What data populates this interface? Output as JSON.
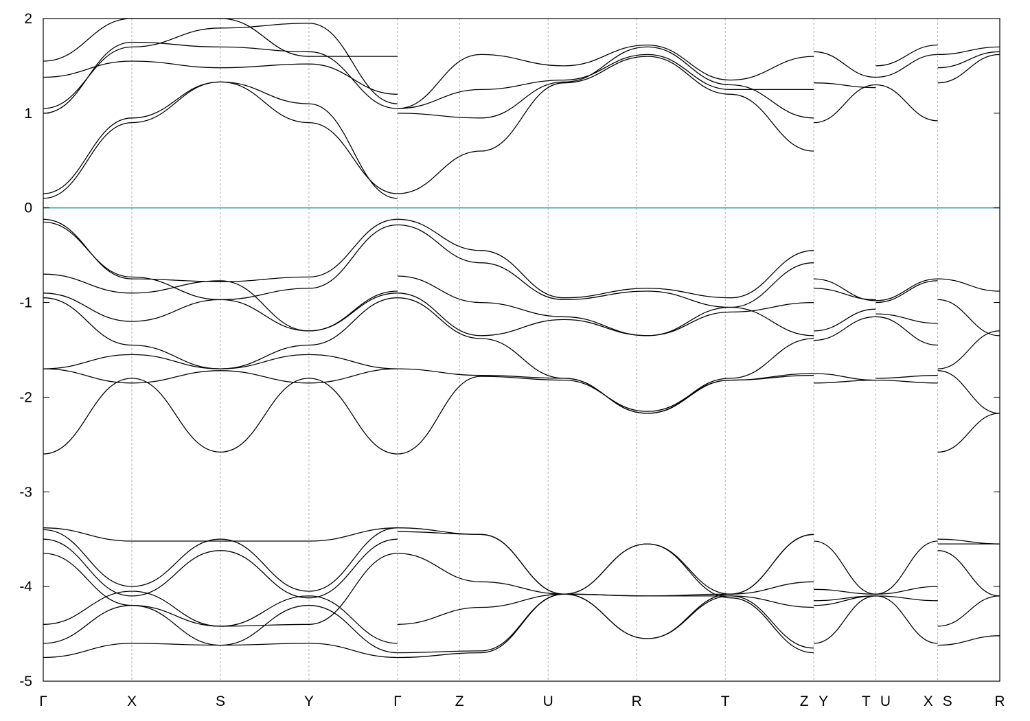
{
  "chart_data": {
    "type": "line",
    "title": "",
    "xlabel": "",
    "ylabel": "",
    "ylim": [
      -5,
      2
    ],
    "yticks": [
      2,
      1,
      0,
      -1,
      -2,
      -3,
      -4,
      -5
    ],
    "grid": "vertical dashed lines at high-symmetry points",
    "fermi_level": {
      "y": 0,
      "color": "#3aa6b9"
    },
    "kpoints": [
      {
        "label": "Γ",
        "x": 0.0
      },
      {
        "label": "X",
        "x": 0.5
      },
      {
        "label": "S",
        "x": 1.0
      },
      {
        "label": "Y",
        "x": 1.5
      },
      {
        "label": "Γ",
        "x": 2.0
      },
      {
        "label": "Z",
        "x": 2.35
      },
      {
        "label": "U",
        "x": 2.85
      },
      {
        "label": "R",
        "x": 3.35
      },
      {
        "label": "T",
        "x": 3.85
      },
      {
        "label": "Z",
        "x": 4.35
      },
      {
        "label": "Y",
        "x": 4.35
      },
      {
        "label": "T",
        "x": 4.7
      },
      {
        "label": "U",
        "x": 4.7
      },
      {
        "label": "X",
        "x": 5.05
      },
      {
        "label": "S",
        "x": 5.05
      },
      {
        "label": "R",
        "x": 5.4
      }
    ],
    "segments": [
      {
        "x0": 0.0,
        "x1": 2.0,
        "bands": [
          [
            1.05,
            1.7,
            1.9,
            1.95,
            1.1
          ],
          [
            1.0,
            1.75,
            1.7,
            1.65,
            1.05
          ],
          [
            0.15,
            0.95,
            1.33,
            0.9,
            0.15
          ],
          [
            0.1,
            0.9,
            1.33,
            1.1,
            0.1
          ],
          [
            1.38,
            1.55,
            1.48,
            1.52,
            1.2
          ],
          [
            1.55,
            2.0,
            2.0,
            1.6,
            1.6
          ],
          [
            -0.12,
            -0.75,
            -0.78,
            -0.73,
            -0.12
          ],
          [
            -0.15,
            -0.73,
            -0.97,
            -0.85,
            -0.18
          ],
          [
            -0.7,
            -0.9,
            -0.77,
            -1.3,
            -0.88
          ],
          [
            -0.9,
            -1.2,
            -0.97,
            -1.3,
            -0.9
          ],
          [
            -0.95,
            -1.45,
            -1.7,
            -1.45,
            -0.95
          ],
          [
            -1.7,
            -1.55,
            -1.7,
            -1.55,
            -1.7
          ],
          [
            -1.7,
            -1.85,
            -1.72,
            -1.85,
            -1.7
          ],
          [
            -2.6,
            -1.8,
            -2.58,
            -1.8,
            -2.6
          ],
          [
            -3.38,
            -3.52,
            -3.52,
            -3.52,
            -3.38
          ],
          [
            -3.4,
            -4.0,
            -3.5,
            -4.05,
            -3.38
          ],
          [
            -3.5,
            -4.1,
            -3.62,
            -4.12,
            -3.5
          ],
          [
            -3.65,
            -4.2,
            -4.42,
            -4.4,
            -3.65
          ],
          [
            -4.4,
            -4.05,
            -4.42,
            -4.1,
            -4.6
          ],
          [
            -4.6,
            -4.2,
            -4.62,
            -4.2,
            -4.7
          ],
          [
            -4.75,
            -4.6,
            -4.62,
            -4.6,
            -4.75
          ]
        ]
      },
      {
        "x0": 2.0,
        "x1": 4.35,
        "bands": [
          [
            1.05,
            1.62,
            1.5,
            1.72,
            1.35,
            1.6
          ],
          [
            1.05,
            1.25,
            1.35,
            1.62,
            1.25,
            1.25
          ],
          [
            0.15,
            0.6,
            1.32,
            1.6,
            1.2,
            0.6
          ],
          [
            1.0,
            0.95,
            1.33,
            1.7,
            1.3,
            0.95
          ],
          [
            -0.12,
            -0.45,
            -0.95,
            -0.85,
            -0.95,
            -0.45
          ],
          [
            -0.18,
            -0.58,
            -0.97,
            -0.88,
            -1.05,
            -0.58
          ],
          [
            -0.72,
            -1.0,
            -1.15,
            -1.35,
            -1.1,
            -1.0
          ],
          [
            -0.9,
            -1.35,
            -1.18,
            -1.35,
            -1.05,
            -1.35
          ],
          [
            -0.95,
            -1.38,
            -1.8,
            -2.17,
            -1.8,
            -1.38
          ],
          [
            -1.7,
            -1.77,
            -1.8,
            -2.17,
            -1.82,
            -1.77
          ],
          [
            -2.6,
            -1.78,
            -1.82,
            -2.15,
            -1.82,
            -1.75
          ],
          [
            -3.38,
            -3.45,
            -4.08,
            -3.55,
            -4.08,
            -3.45
          ],
          [
            -3.42,
            -3.45,
            -4.08,
            -4.55,
            -4.08,
            -3.45
          ],
          [
            -3.65,
            -3.95,
            -4.08,
            -4.1,
            -4.08,
            -3.95
          ],
          [
            -4.4,
            -4.22,
            -4.08,
            -4.1,
            -4.1,
            -4.22
          ],
          [
            -4.7,
            -4.68,
            -4.08,
            -4.55,
            -4.1,
            -4.65
          ],
          [
            -4.75,
            -4.7,
            -4.08,
            -3.55,
            -4.12,
            -4.7
          ]
        ]
      },
      {
        "x0": 4.35,
        "x1": 4.7,
        "bands": [
          [
            1.65,
            1.38
          ],
          [
            1.32,
            1.27
          ],
          [
            0.9,
            1.3
          ],
          [
            -0.75,
            -0.98
          ],
          [
            -0.85,
            -0.97
          ],
          [
            -1.3,
            -1.07
          ],
          [
            -1.4,
            -1.15
          ],
          [
            -1.75,
            -1.82
          ],
          [
            -1.85,
            -1.82
          ],
          [
            -3.52,
            -4.08
          ],
          [
            -4.03,
            -4.08
          ],
          [
            -4.15,
            -4.1
          ],
          [
            -4.2,
            -4.1
          ],
          [
            -4.6,
            -4.1
          ]
        ]
      },
      {
        "x0": 4.7,
        "x1": 5.05,
        "bands": [
          [
            1.5,
            1.72
          ],
          [
            1.38,
            1.62
          ],
          [
            1.3,
            0.92
          ],
          [
            -0.98,
            -0.75
          ],
          [
            -1.0,
            -0.77
          ],
          [
            -1.12,
            -1.22
          ],
          [
            -1.15,
            -1.45
          ],
          [
            -1.8,
            -1.77
          ],
          [
            -1.82,
            -1.85
          ],
          [
            -4.08,
            -3.52
          ],
          [
            -4.08,
            -4.0
          ],
          [
            -4.1,
            -4.15
          ],
          [
            -4.1,
            -4.6
          ]
        ]
      },
      {
        "x0": 5.05,
        "x1": 5.4,
        "bands": [
          [
            1.62,
            1.7
          ],
          [
            1.48,
            1.65
          ],
          [
            1.32,
            1.62
          ],
          [
            -0.75,
            -0.88
          ],
          [
            -0.97,
            -1.35
          ],
          [
            -1.7,
            -1.3
          ],
          [
            -1.72,
            -2.17
          ],
          [
            -2.58,
            -2.17
          ],
          [
            -3.5,
            -3.55
          ],
          [
            -3.55,
            -3.55
          ],
          [
            -3.62,
            -4.1
          ],
          [
            -4.42,
            -4.1
          ],
          [
            -4.62,
            -4.52
          ]
        ]
      }
    ]
  }
}
